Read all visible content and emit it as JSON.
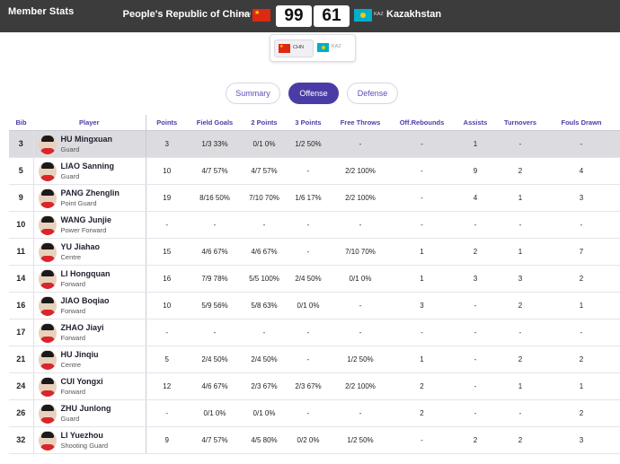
{
  "header": {
    "title": "Member Stats",
    "home": {
      "name": "People's Republic of China",
      "code": "CHN",
      "score": "99"
    },
    "away": {
      "name": "Kazakhstan",
      "code": "KAZ",
      "score": "61"
    }
  },
  "team_switch": {
    "options": [
      "CHN",
      "KAZ"
    ],
    "selected": "CHN"
  },
  "tabs": {
    "summary": "Summary",
    "offense": "Offense",
    "defense": "Defense",
    "active": "Offense"
  },
  "colors": {
    "accent": "#4a3ca6",
    "topbar": "#3c3c3c",
    "selected_row": "#dcdce0"
  },
  "table": {
    "headers": [
      "Bib",
      "Player",
      "Points",
      "Field Goals",
      "2 Points",
      "3 Points",
      "Free Throws",
      "Off.Rebounds",
      "Assists",
      "Turnovers",
      "Fouls Drawn"
    ],
    "rows": [
      {
        "bib": "3",
        "name": "HU Mingxuan",
        "pos": "Guard",
        "cells": [
          "3",
          "1/3 33%",
          "0/1 0%",
          "1/2 50%",
          "-",
          "-",
          "1",
          "-",
          "-"
        ]
      },
      {
        "bib": "5",
        "name": "LIAO Sanning",
        "pos": "Guard",
        "cells": [
          "10",
          "4/7 57%",
          "4/7 57%",
          "-",
          "2/2 100%",
          "-",
          "9",
          "2",
          "4"
        ]
      },
      {
        "bib": "9",
        "name": "PANG Zhenglin",
        "pos": "Point Guard",
        "cells": [
          "19",
          "8/16 50%",
          "7/10 70%",
          "1/6 17%",
          "2/2 100%",
          "-",
          "4",
          "1",
          "3"
        ]
      },
      {
        "bib": "10",
        "name": "WANG Junjie",
        "pos": "Power Forward",
        "cells": [
          "-",
          "-",
          "-",
          "-",
          "-",
          "-",
          "-",
          "-",
          "-"
        ]
      },
      {
        "bib": "11",
        "name": "YU Jiahao",
        "pos": "Centre",
        "cells": [
          "15",
          "4/6 67%",
          "4/6 67%",
          "-",
          "7/10 70%",
          "1",
          "2",
          "1",
          "7"
        ]
      },
      {
        "bib": "14",
        "name": "LI Hongquan",
        "pos": "Forward",
        "cells": [
          "16",
          "7/9 78%",
          "5/5 100%",
          "2/4 50%",
          "0/1 0%",
          "1",
          "3",
          "3",
          "2"
        ]
      },
      {
        "bib": "16",
        "name": "JIAO Boqiao",
        "pos": "Forward",
        "cells": [
          "10",
          "5/9 56%",
          "5/8 63%",
          "0/1 0%",
          "-",
          "3",
          "-",
          "2",
          "1"
        ]
      },
      {
        "bib": "17",
        "name": "ZHAO Jiayi",
        "pos": "Forward",
        "cells": [
          "-",
          "-",
          "-",
          "-",
          "-",
          "-",
          "-",
          "-",
          "-"
        ]
      },
      {
        "bib": "21",
        "name": "HU Jinqiu",
        "pos": "Centre",
        "cells": [
          "5",
          "2/4 50%",
          "2/4 50%",
          "-",
          "1/2 50%",
          "1",
          "-",
          "2",
          "2"
        ]
      },
      {
        "bib": "24",
        "name": "CUI Yongxi",
        "pos": "Forward",
        "cells": [
          "12",
          "4/6 67%",
          "2/3 67%",
          "2/3 67%",
          "2/2 100%",
          "2",
          "-",
          "1",
          "1"
        ]
      },
      {
        "bib": "26",
        "name": "ZHU Junlong",
        "pos": "Guard",
        "cells": [
          "-",
          "0/1 0%",
          "0/1 0%",
          "-",
          "-",
          "2",
          "-",
          "-",
          "2"
        ]
      },
      {
        "bib": "32",
        "name": "LI Yuezhou",
        "pos": "Shooting Guard",
        "cells": [
          "9",
          "4/7 57%",
          "4/5 80%",
          "0/2 0%",
          "1/2 50%",
          "-",
          "2",
          "2",
          "3"
        ]
      }
    ]
  }
}
